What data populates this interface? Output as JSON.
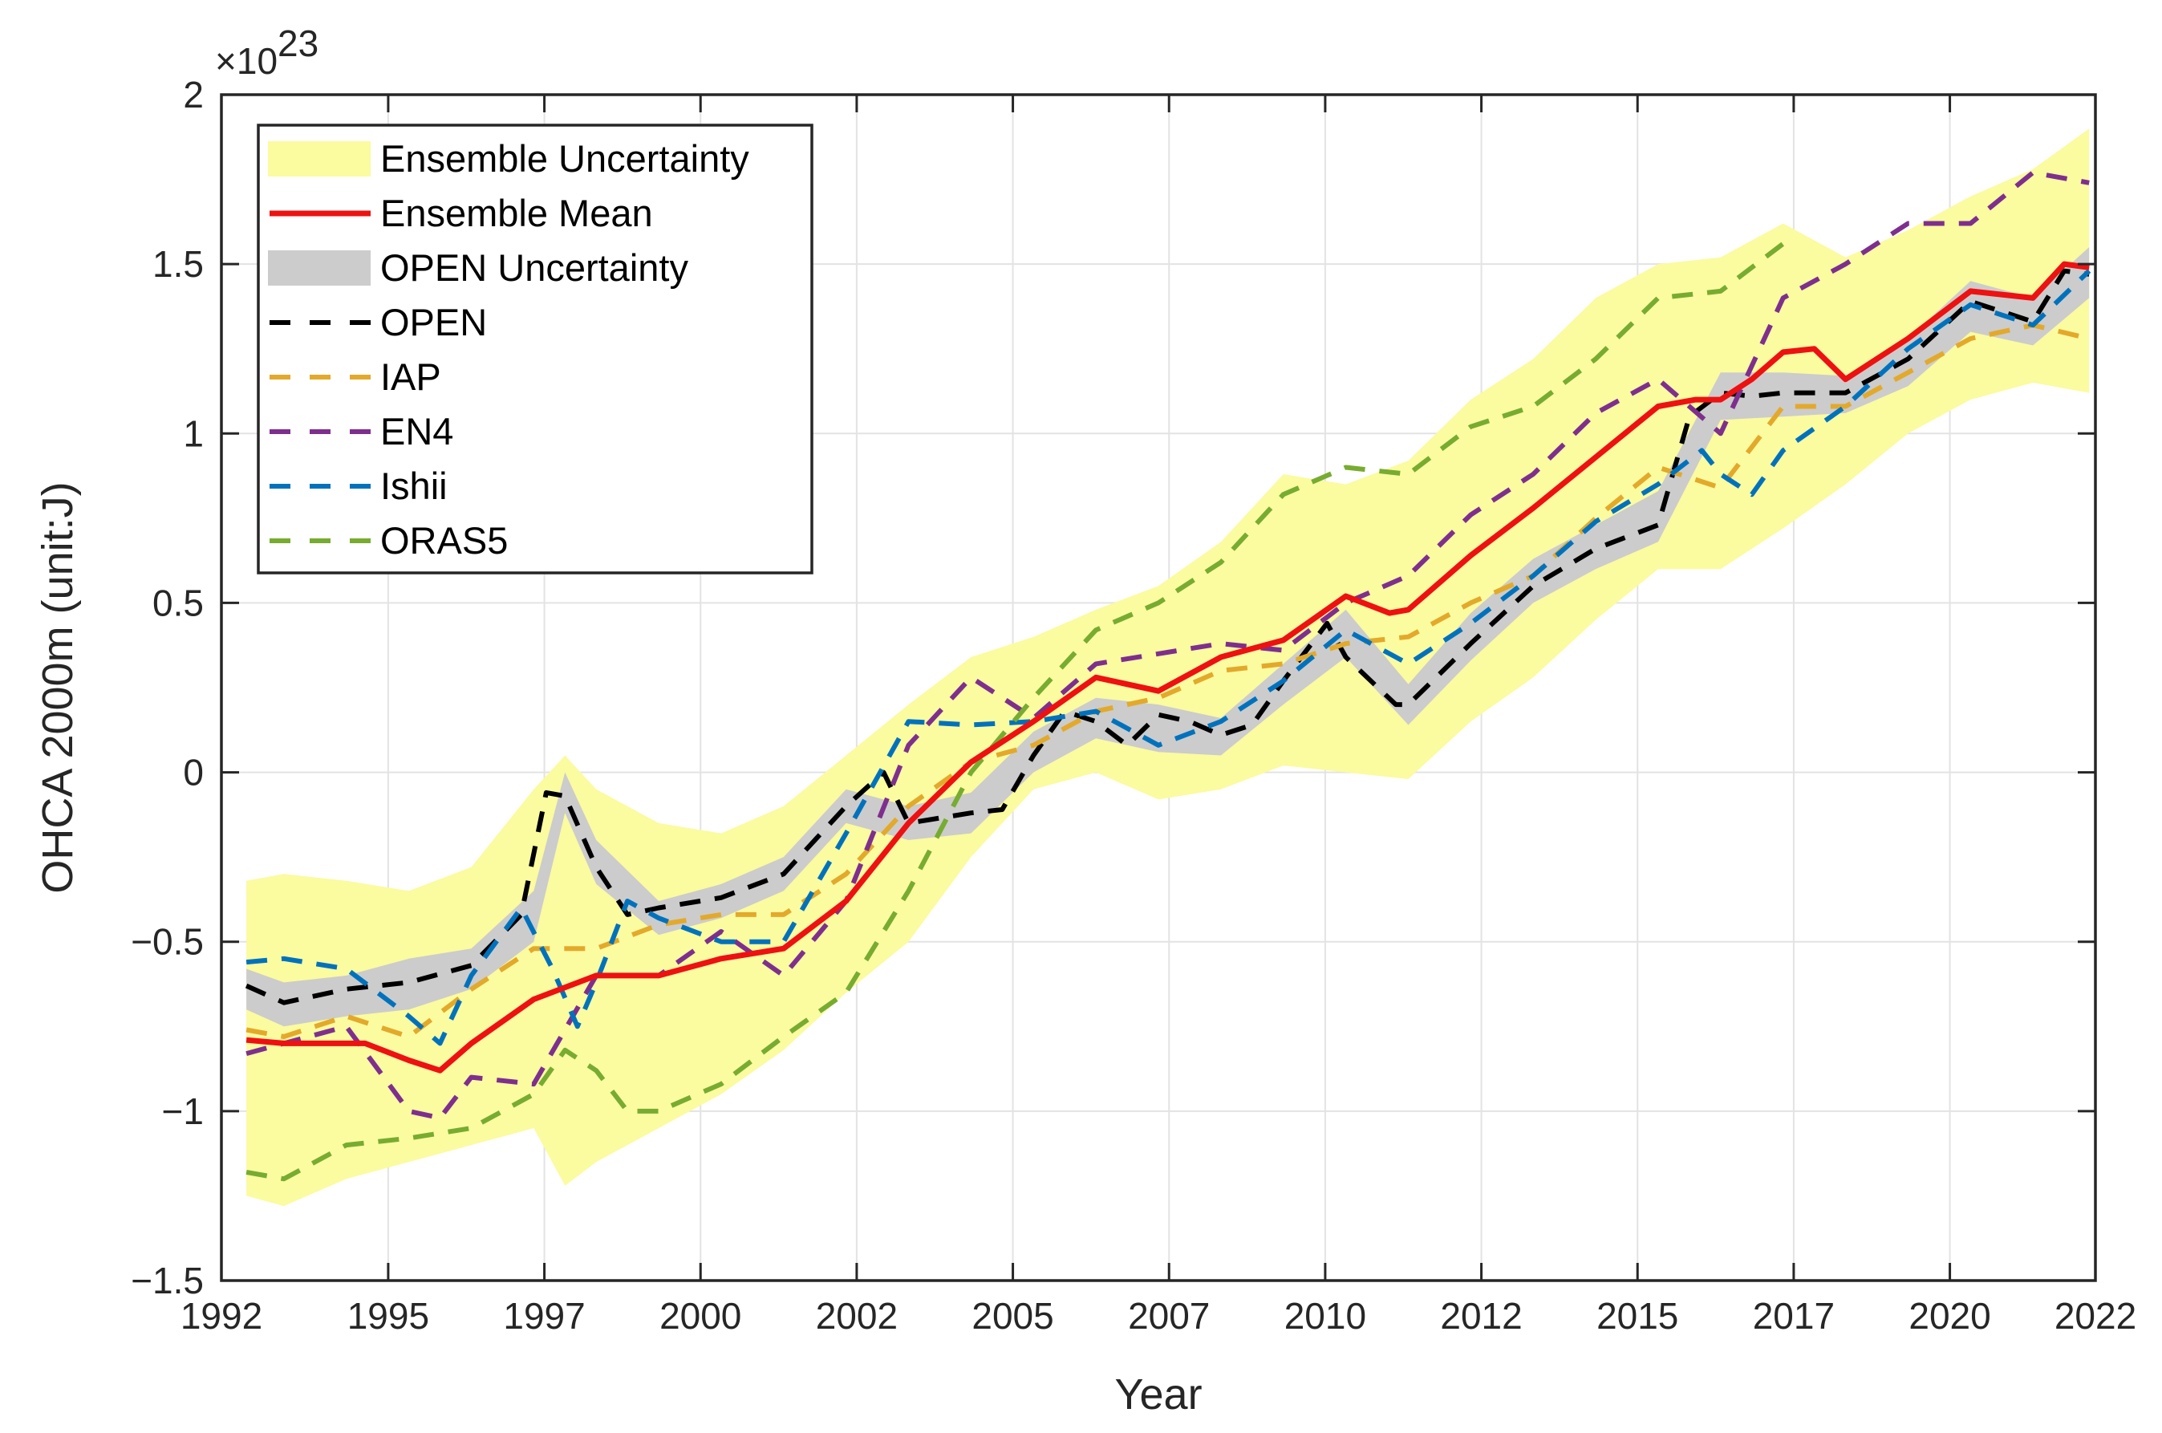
{
  "chart_data": {
    "type": "line",
    "title": "",
    "xlabel": "Year",
    "ylabel": "OHCA 2000m (unit:J)",
    "y_exponent_label": "×10",
    "y_exponent_power": "23",
    "xlim": [
      1992,
      2022
    ],
    "ylim": [
      -1.5,
      2
    ],
    "grid": true,
    "legend_position": "top-left",
    "x_ticks": [
      {
        "value": 1992,
        "label": "1992"
      },
      {
        "value": 1994.67,
        "label": "1995"
      },
      {
        "value": 1997.17,
        "label": "1997"
      },
      {
        "value": 1999.67,
        "label": "2000"
      },
      {
        "value": 2002.17,
        "label": "2002"
      },
      {
        "value": 2004.67,
        "label": "2005"
      },
      {
        "value": 2007.17,
        "label": "2007"
      },
      {
        "value": 2009.67,
        "label": "2010"
      },
      {
        "value": 2012.17,
        "label": "2012"
      },
      {
        "value": 2014.67,
        "label": "2015"
      },
      {
        "value": 2017.17,
        "label": "2017"
      },
      {
        "value": 2019.67,
        "label": "2020"
      },
      {
        "value": 2022,
        "label": "2022"
      }
    ],
    "y_ticks": [
      {
        "value": 2,
        "label": "2"
      },
      {
        "value": 1.5,
        "label": "1.5"
      },
      {
        "value": 1,
        "label": "1"
      },
      {
        "value": 0.5,
        "label": "0.5"
      },
      {
        "value": 0,
        "label": "0"
      },
      {
        "value": -0.5,
        "label": "−0.5"
      },
      {
        "value": -1,
        "label": "−1"
      },
      {
        "value": -1.5,
        "label": "−1.5"
      }
    ],
    "bands": [
      {
        "name": "Ensemble Uncertainty",
        "color": "#fbfba0",
        "x": [
          1992.4,
          1993,
          1994,
          1995,
          1996,
          1997,
          1997.5,
          1998,
          1999,
          2000,
          2001,
          2002,
          2003,
          2004,
          2005,
          2006,
          2007,
          2008,
          2009,
          2010,
          2011,
          2012,
          2013,
          2014,
          2015,
          2016,
          2017,
          2018,
          2019,
          2020,
          2021,
          2021.9
        ],
        "upper": [
          -0.32,
          -0.3,
          -0.32,
          -0.35,
          -0.28,
          -0.05,
          0.05,
          -0.05,
          -0.15,
          -0.18,
          -0.1,
          0.05,
          0.2,
          0.34,
          0.4,
          0.48,
          0.55,
          0.68,
          0.88,
          0.85,
          0.92,
          1.1,
          1.22,
          1.4,
          1.5,
          1.52,
          1.62,
          1.52,
          1.6,
          1.7,
          1.78,
          1.9
        ],
        "lower": [
          -1.25,
          -1.28,
          -1.2,
          -1.15,
          -1.1,
          -1.05,
          -1.22,
          -1.15,
          -1.05,
          -0.95,
          -0.82,
          -0.65,
          -0.5,
          -0.25,
          -0.05,
          0.0,
          -0.08,
          -0.05,
          0.02,
          0.0,
          -0.02,
          0.15,
          0.28,
          0.45,
          0.6,
          0.6,
          0.72,
          0.85,
          1.0,
          1.1,
          1.15,
          1.12
        ]
      },
      {
        "name": "OPEN Uncertainty",
        "color": "#cccccc",
        "x": [
          1992.4,
          1993,
          1994,
          1995,
          1996,
          1997,
          1997.5,
          1998,
          1999,
          2000,
          2001,
          2002,
          2003,
          2004,
          2005,
          2006,
          2007,
          2008,
          2009,
          2010,
          2011,
          2012,
          2013,
          2014,
          2015,
          2016,
          2017,
          2018,
          2019,
          2020,
          2021,
          2021.9
        ],
        "upper": [
          -0.58,
          -0.62,
          -0.6,
          -0.55,
          -0.52,
          -0.35,
          0.0,
          -0.2,
          -0.38,
          -0.33,
          -0.25,
          -0.05,
          -0.1,
          -0.06,
          0.12,
          0.22,
          0.2,
          0.16,
          0.32,
          0.48,
          0.26,
          0.47,
          0.63,
          0.73,
          0.83,
          1.18,
          1.18,
          1.17,
          1.28,
          1.45,
          1.4,
          1.55
        ],
        "lower": [
          -0.7,
          -0.75,
          -0.72,
          -0.7,
          -0.64,
          -0.5,
          -0.12,
          -0.33,
          -0.48,
          -0.43,
          -0.35,
          -0.15,
          -0.2,
          -0.18,
          0.0,
          0.1,
          0.06,
          0.05,
          0.2,
          0.34,
          0.14,
          0.33,
          0.5,
          0.6,
          0.68,
          1.04,
          1.05,
          1.06,
          1.14,
          1.3,
          1.26,
          1.4
        ]
      }
    ],
    "series": [
      {
        "name": "Ensemble Mean",
        "color": "#ee1111",
        "dash": "solid",
        "x": [
          1992.4,
          1993,
          1994,
          1994.3,
          1995,
          1995.5,
          1996,
          1997,
          1998,
          1999,
          2000,
          2001,
          2002,
          2003,
          2004,
          2005,
          2006,
          2007,
          2008,
          2009,
          2010,
          2010.7,
          2011,
          2012,
          2013,
          2014,
          2015,
          2015.6,
          2016,
          2016.5,
          2017,
          2017.5,
          2018,
          2019,
          2020,
          2021,
          2021.5,
          2021.9
        ],
        "values": [
          -0.79,
          -0.8,
          -0.8,
          -0.8,
          -0.85,
          -0.88,
          -0.8,
          -0.67,
          -0.6,
          -0.6,
          -0.55,
          -0.52,
          -0.38,
          -0.15,
          0.03,
          0.15,
          0.28,
          0.24,
          0.34,
          0.39,
          0.52,
          0.47,
          0.48,
          0.64,
          0.78,
          0.93,
          1.08,
          1.1,
          1.1,
          1.16,
          1.24,
          1.25,
          1.16,
          1.28,
          1.42,
          1.4,
          1.5,
          1.49
        ]
      },
      {
        "name": "OPEN",
        "color": "#000000",
        "dash": "dashed",
        "x": [
          1992.4,
          1993,
          1994,
          1995,
          1996,
          1996.8,
          1997.2,
          1997.5,
          1998,
          1998.5,
          1999,
          2000,
          2001,
          2002,
          2002.6,
          2003,
          2004,
          2004.5,
          2005,
          2005.5,
          2006,
          2006.5,
          2007,
          2007.5,
          2008,
          2008.5,
          2009,
          2009.7,
          2010,
          2010.8,
          2011,
          2012,
          2013,
          2014,
          2015,
          2015.5,
          2016,
          2016.5,
          2017,
          2018,
          2019,
          2020,
          2021,
          2021.5,
          2021.9
        ],
        "values": [
          -0.63,
          -0.68,
          -0.64,
          -0.62,
          -0.57,
          -0.42,
          -0.06,
          -0.07,
          -0.28,
          -0.42,
          -0.4,
          -0.37,
          -0.3,
          -0.1,
          0.0,
          -0.15,
          -0.12,
          -0.11,
          0.05,
          0.18,
          0.15,
          0.08,
          0.17,
          0.15,
          0.11,
          0.14,
          0.27,
          0.44,
          0.34,
          0.2,
          0.2,
          0.38,
          0.55,
          0.66,
          0.73,
          1.05,
          1.12,
          1.11,
          1.12,
          1.12,
          1.22,
          1.39,
          1.33,
          1.48,
          1.47
        ]
      },
      {
        "name": "IAP",
        "color": "#e3a92b",
        "dash": "dashed",
        "x": [
          1992.4,
          1993,
          1994,
          1995,
          1996,
          1997,
          1998,
          1999,
          2000,
          2001,
          2002,
          2003,
          2004,
          2005,
          2006,
          2007,
          2008,
          2009,
          2010,
          2011,
          2012,
          2013,
          2014,
          2015,
          2016,
          2017,
          2018,
          2019,
          2020,
          2021,
          2021.9
        ],
        "values": [
          -0.76,
          -0.78,
          -0.72,
          -0.78,
          -0.64,
          -0.52,
          -0.52,
          -0.45,
          -0.42,
          -0.42,
          -0.3,
          -0.1,
          0.03,
          0.08,
          0.18,
          0.22,
          0.3,
          0.32,
          0.38,
          0.4,
          0.5,
          0.58,
          0.75,
          0.9,
          0.84,
          1.08,
          1.08,
          1.18,
          1.28,
          1.32,
          1.28
        ]
      },
      {
        "name": "EN4",
        "color": "#7e2f8e",
        "dash": "dashed",
        "x": [
          1992.4,
          1993,
          1994,
          1995,
          1995.5,
          1996,
          1997,
          1998,
          1999,
          2000,
          2001,
          2002,
          2003,
          2004,
          2005,
          2006,
          2007,
          2008,
          2009,
          2010,
          2011,
          2012,
          2013,
          2014,
          2015,
          2016,
          2017,
          2018,
          2019,
          2020,
          2021,
          2021.9
        ],
        "values": [
          -0.83,
          -0.8,
          -0.75,
          -1.0,
          -1.02,
          -0.9,
          -0.92,
          -0.6,
          -0.6,
          -0.47,
          -0.6,
          -0.38,
          0.08,
          0.28,
          0.16,
          0.32,
          0.35,
          0.38,
          0.36,
          0.5,
          0.58,
          0.76,
          0.88,
          1.06,
          1.16,
          1.0,
          1.4,
          1.5,
          1.62,
          1.62,
          1.77,
          1.74
        ]
      },
      {
        "name": "Ishii",
        "color": "#0072bd",
        "dash": "dashed",
        "x": [
          1992.4,
          1993,
          1994,
          1995,
          1995.5,
          1996,
          1996.8,
          1997.3,
          1997.7,
          1998,
          1998.5,
          1999,
          2000,
          2001,
          2002,
          2003,
          2004,
          2005,
          2006,
          2007,
          2008,
          2009,
          2010,
          2011,
          2012,
          2013,
          2014,
          2015,
          2015.7,
          2016,
          2016.5,
          2017,
          2018,
          2019,
          2020,
          2021,
          2021.9
        ],
        "values": [
          -0.56,
          -0.55,
          -0.58,
          -0.72,
          -0.8,
          -0.6,
          -0.4,
          -0.58,
          -0.75,
          -0.62,
          -0.38,
          -0.43,
          -0.5,
          -0.5,
          -0.18,
          0.15,
          0.14,
          0.15,
          0.18,
          0.08,
          0.15,
          0.27,
          0.42,
          0.32,
          0.44,
          0.58,
          0.74,
          0.85,
          0.95,
          0.88,
          0.82,
          0.95,
          1.08,
          1.25,
          1.38,
          1.32,
          1.48
        ]
      },
      {
        "name": "ORAS5",
        "color": "#77ac30",
        "dash": "dashed",
        "x": [
          1992.4,
          1993,
          1994,
          1995,
          1996,
          1997,
          1997.5,
          1998,
          1998.5,
          1999,
          2000,
          2001,
          2002,
          2003,
          2004,
          2005,
          2006,
          2007,
          2008,
          2009,
          2010,
          2011,
          2012,
          2013,
          2014,
          2015,
          2016,
          2017
        ],
        "values": [
          -1.18,
          -1.2,
          -1.1,
          -1.08,
          -1.05,
          -0.95,
          -0.82,
          -0.88,
          -1.0,
          -1.0,
          -0.92,
          -0.78,
          -0.65,
          -0.35,
          0.0,
          0.22,
          0.42,
          0.5,
          0.62,
          0.82,
          0.9,
          0.88,
          1.02,
          1.08,
          1.22,
          1.4,
          1.42,
          1.56
        ]
      }
    ],
    "legend": [
      {
        "label": "Ensemble Uncertainty",
        "kind": "band",
        "color": "#fbfba0"
      },
      {
        "label": "Ensemble Mean",
        "kind": "solid",
        "color": "#ee1111"
      },
      {
        "label": "OPEN Uncertainty",
        "kind": "band",
        "color": "#cccccc"
      },
      {
        "label": "OPEN",
        "kind": "dashed",
        "color": "#000000"
      },
      {
        "label": "IAP",
        "kind": "dashed",
        "color": "#e3a92b"
      },
      {
        "label": "EN4",
        "kind": "dashed",
        "color": "#7e2f8e"
      },
      {
        "label": "Ishii",
        "kind": "dashed",
        "color": "#0072bd"
      },
      {
        "label": "ORAS5",
        "kind": "dashed",
        "color": "#77ac30"
      }
    ]
  }
}
